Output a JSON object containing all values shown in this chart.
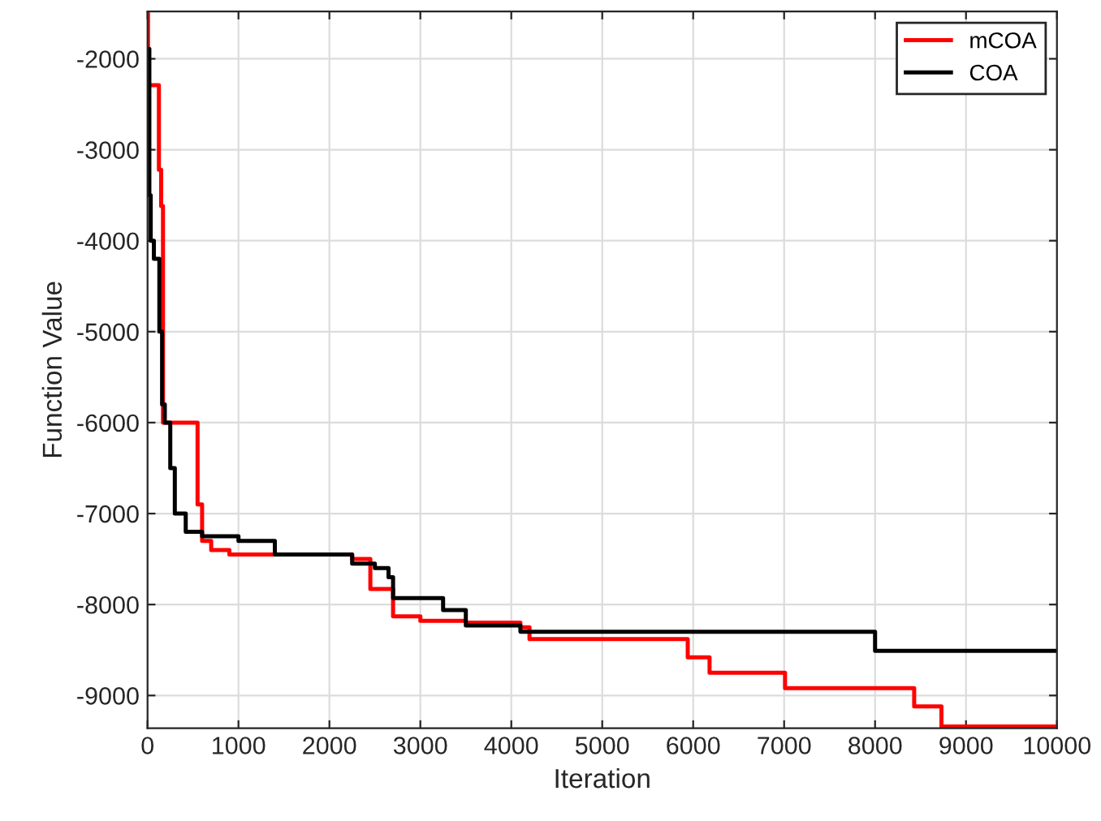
{
  "chart_data": {
    "type": "step",
    "xlabel": "Iteration",
    "ylabel": "Function Value",
    "xlim": [
      0,
      10000
    ],
    "xticks": [
      0,
      1000,
      2000,
      3000,
      4000,
      5000,
      6000,
      7000,
      8000,
      9000,
      10000
    ],
    "ylim": [
      -9360,
      -1480
    ],
    "yticks": [
      -2000,
      -3000,
      -4000,
      -5000,
      -6000,
      -7000,
      -8000,
      -9000
    ],
    "grid": true,
    "legend": "top right",
    "series": [
      {
        "name": "mCOA",
        "color": "#ff0000",
        "x": [
          0,
          5,
          125,
          150,
          170,
          550,
          600,
          700,
          900,
          2250,
          2450,
          2700,
          3000,
          3500,
          4100,
          4200,
          5940,
          6180,
          7010,
          8430,
          8730,
          10000
        ],
        "values": [
          -1500,
          -2290,
          -3220,
          -3620,
          -6000,
          -6900,
          -7300,
          -7400,
          -7450,
          -7500,
          -7830,
          -8130,
          -8180,
          -8200,
          -8250,
          -8380,
          -8580,
          -8750,
          -8920,
          -9120,
          -9340,
          -9340
        ]
      },
      {
        "name": "COA",
        "color": "#000000",
        "x": [
          0,
          20,
          35,
          70,
          130,
          160,
          190,
          250,
          300,
          420,
          600,
          1000,
          1400,
          2250,
          2500,
          2650,
          2700,
          3250,
          3500,
          4100,
          8000,
          10000
        ],
        "values": [
          -1890,
          -3500,
          -4000,
          -4200,
          -5000,
          -5800,
          -6000,
          -6500,
          -7000,
          -7200,
          -7250,
          -7300,
          -7450,
          -7550,
          -7600,
          -7700,
          -7930,
          -8060,
          -8230,
          -8300,
          -8510,
          -8510
        ]
      }
    ]
  }
}
